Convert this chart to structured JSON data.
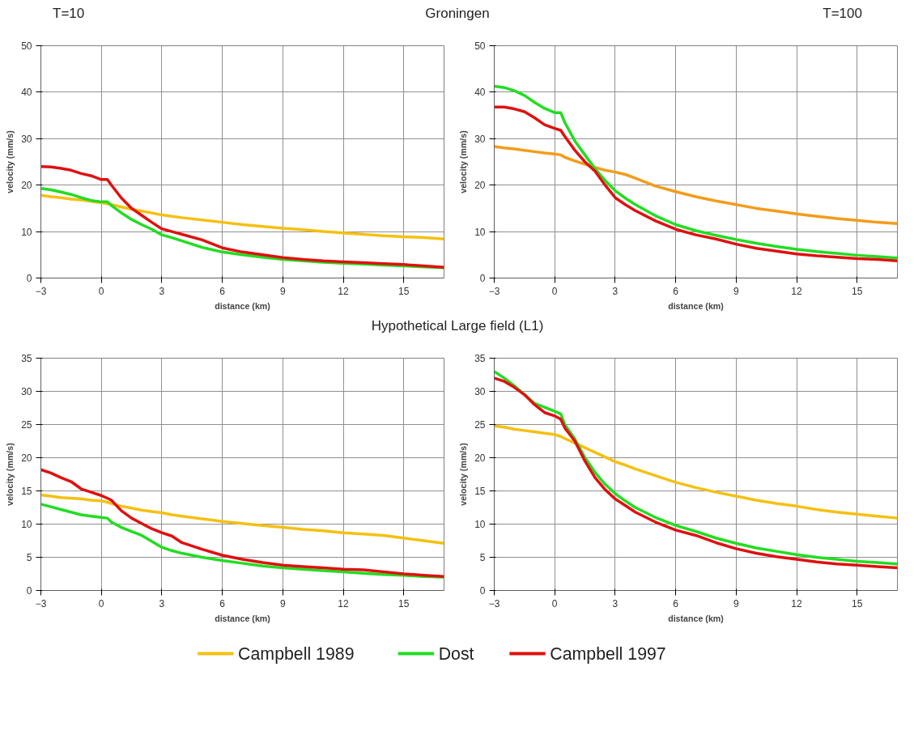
{
  "chart_data": [
    {
      "type": "line",
      "title": "Groningen",
      "subtitle": "T=10",
      "xlabel": "distance (km)",
      "ylabel": "velocity (mm/s)",
      "xlim": [
        -3,
        17
      ],
      "xticks": [
        -3,
        0,
        3,
        6,
        9,
        12,
        15
      ],
      "ylim": [
        0,
        50
      ],
      "yticks": [
        0,
        10,
        20,
        30,
        40,
        50
      ],
      "grid": true,
      "legend": false,
      "x": [
        -3,
        -2.5,
        -2,
        -1.5,
        -1,
        -0.5,
        0,
        0.3,
        0.5,
        1,
        1.5,
        2,
        2.5,
        3,
        3.5,
        4,
        5,
        6,
        7,
        8,
        9,
        10,
        11,
        12,
        13,
        14,
        15,
        16,
        17
      ],
      "series": [
        {
          "color": "#f5c010",
          "values": [
            17.8,
            17.5,
            17.3,
            17.0,
            16.8,
            16.5,
            16.2,
            16.0,
            15.8,
            15.3,
            14.8,
            14.4,
            14.0,
            13.6,
            13.3,
            13.0,
            12.5,
            12.0,
            11.5,
            11.1,
            10.7,
            10.4,
            10.0,
            9.7,
            9.4,
            9.1,
            8.9,
            8.7,
            8.4
          ]
        },
        {
          "color": "#22dd22",
          "values": [
            19.3,
            19.0,
            18.5,
            18.0,
            17.3,
            16.7,
            16.4,
            16.4,
            15.6,
            14.0,
            12.6,
            11.5,
            10.5,
            9.3,
            8.7,
            8.0,
            6.6,
            5.6,
            5.0,
            4.5,
            4.0,
            3.7,
            3.4,
            3.2,
            3.0,
            2.8,
            2.6,
            2.4,
            2.2
          ]
        },
        {
          "color": "#e01010",
          "values": [
            24.0,
            23.9,
            23.6,
            23.2,
            22.5,
            22.0,
            21.2,
            21.2,
            20.0,
            17.2,
            15.0,
            13.5,
            12.0,
            10.6,
            10.0,
            9.4,
            8.2,
            6.5,
            5.6,
            5.0,
            4.4,
            4.0,
            3.7,
            3.5,
            3.3,
            3.1,
            2.9,
            2.6,
            2.3
          ]
        }
      ]
    },
    {
      "type": "line",
      "subtitle": "T=100",
      "xlabel": "distance (km)",
      "ylabel": "velocity (mm/s)",
      "xlim": [
        -3,
        17
      ],
      "xticks": [
        -3,
        0,
        3,
        6,
        9,
        12,
        15
      ],
      "ylim": [
        0,
        50
      ],
      "yticks": [
        0,
        10,
        20,
        30,
        40,
        50
      ],
      "grid": true,
      "legend": false,
      "x": [
        -3,
        -2.5,
        -2,
        -1.5,
        -1,
        -0.5,
        0,
        0.3,
        0.5,
        1,
        1.5,
        2,
        2.5,
        3,
        3.5,
        4,
        5,
        6,
        7,
        8,
        9,
        10,
        11,
        12,
        13,
        14,
        15,
        16,
        17
      ],
      "series": [
        {
          "color": "#f39c1a",
          "values": [
            28.3,
            28.0,
            27.8,
            27.5,
            27.2,
            26.9,
            26.7,
            26.5,
            26.0,
            25.2,
            24.5,
            23.8,
            23.2,
            22.8,
            22.3,
            21.5,
            19.8,
            18.6,
            17.5,
            16.6,
            15.8,
            15.0,
            14.4,
            13.8,
            13.3,
            12.8,
            12.4,
            12.0,
            11.7
          ]
        },
        {
          "color": "#22dd22",
          "values": [
            41.3,
            41.0,
            40.3,
            39.3,
            37.8,
            36.5,
            35.6,
            35.6,
            33.5,
            29.5,
            26.5,
            23.5,
            21.0,
            18.8,
            17.2,
            15.8,
            13.4,
            11.5,
            10.2,
            9.2,
            8.3,
            7.5,
            6.8,
            6.2,
            5.7,
            5.3,
            4.9,
            4.6,
            4.3
          ]
        },
        {
          "color": "#e01010",
          "values": [
            36.8,
            36.8,
            36.4,
            35.8,
            34.5,
            33.0,
            32.2,
            31.8,
            30.5,
            27.5,
            25.0,
            23.0,
            20.0,
            17.3,
            15.8,
            14.5,
            12.3,
            10.5,
            9.3,
            8.4,
            7.3,
            6.4,
            5.8,
            5.2,
            4.8,
            4.5,
            4.2,
            4.0,
            3.7
          ]
        }
      ]
    },
    {
      "type": "line",
      "title": "Hypothetical Large field (L1)",
      "xlabel": "distance (km)",
      "ylabel": "velocity (mm/s)",
      "xlim": [
        -3,
        17
      ],
      "xticks": [
        -3,
        0,
        3,
        6,
        9,
        12,
        15
      ],
      "ylim": [
        0,
        35
      ],
      "yticks": [
        0,
        5,
        10,
        15,
        20,
        25,
        30,
        35
      ],
      "grid": true,
      "legend": false,
      "x": [
        -3,
        -2.5,
        -2,
        -1.5,
        -1,
        -0.5,
        0,
        0.3,
        0.5,
        1,
        1.5,
        2,
        2.5,
        3,
        3.5,
        4,
        5,
        6,
        7,
        8,
        9,
        10,
        11,
        12,
        13,
        14,
        15,
        16,
        17
      ],
      "series": [
        {
          "color": "#f5c010",
          "values": [
            14.4,
            14.2,
            14.0,
            13.9,
            13.8,
            13.6,
            13.5,
            13.3,
            13.1,
            12.7,
            12.4,
            12.1,
            11.9,
            11.7,
            11.4,
            11.2,
            10.8,
            10.4,
            10.1,
            9.8,
            9.5,
            9.2,
            9.0,
            8.7,
            8.5,
            8.3,
            7.9,
            7.5,
            7.1
          ]
        },
        {
          "color": "#22dd22",
          "values": [
            13.0,
            12.6,
            12.2,
            11.8,
            11.4,
            11.2,
            11.0,
            10.9,
            10.3,
            9.5,
            8.9,
            8.3,
            7.4,
            6.5,
            6.0,
            5.6,
            5.0,
            4.5,
            4.1,
            3.7,
            3.4,
            3.2,
            3.0,
            2.8,
            2.6,
            2.4,
            2.3,
            2.1,
            2.0
          ]
        },
        {
          "color": "#e01010",
          "values": [
            18.2,
            17.7,
            17.0,
            16.4,
            15.3,
            14.8,
            14.3,
            13.9,
            13.6,
            12.0,
            10.9,
            10.1,
            9.3,
            8.7,
            8.2,
            7.2,
            6.2,
            5.3,
            4.7,
            4.2,
            3.8,
            3.6,
            3.4,
            3.2,
            3.1,
            2.8,
            2.5,
            2.3,
            2.1
          ]
        }
      ]
    },
    {
      "type": "line",
      "xlabel": "distance (km)",
      "ylabel": "velocity (mm/s)",
      "xlim": [
        -3,
        17
      ],
      "xticks": [
        -3,
        0,
        3,
        6,
        9,
        12,
        15
      ],
      "ylim": [
        0,
        35
      ],
      "yticks": [
        0,
        5,
        10,
        15,
        20,
        25,
        30,
        35
      ],
      "grid": true,
      "legend": "bottom",
      "x": [
        -3,
        -2.5,
        -2,
        -1.5,
        -1,
        -0.5,
        0,
        0.3,
        0.5,
        1,
        1.5,
        2,
        2.5,
        3,
        3.5,
        4,
        5,
        6,
        7,
        8,
        9,
        10,
        11,
        12,
        13,
        14,
        15,
        16,
        17
      ],
      "series": [
        {
          "name": "Campbell 1989",
          "color": "#f5c010",
          "values": [
            24.8,
            24.6,
            24.3,
            24.1,
            23.9,
            23.7,
            23.5,
            23.2,
            22.9,
            22.2,
            21.5,
            20.8,
            20.1,
            19.4,
            18.9,
            18.3,
            17.3,
            16.3,
            15.5,
            14.8,
            14.2,
            13.6,
            13.1,
            12.7,
            12.2,
            11.8,
            11.5,
            11.2,
            10.9
          ]
        },
        {
          "name": "Dost",
          "color": "#22dd22",
          "values": [
            33.0,
            32.0,
            30.8,
            29.5,
            28.2,
            27.6,
            27.0,
            26.6,
            25.0,
            22.8,
            20.0,
            17.8,
            16.0,
            14.6,
            13.5,
            12.5,
            11.0,
            9.8,
            8.9,
            7.9,
            7.1,
            6.4,
            5.9,
            5.4,
            5.0,
            4.7,
            4.4,
            4.2,
            4.0
          ]
        },
        {
          "name": "Campbell 1997",
          "color": "#e01010",
          "values": [
            32.0,
            31.5,
            30.6,
            29.5,
            28.0,
            26.8,
            26.3,
            25.8,
            24.5,
            22.5,
            19.5,
            17.0,
            15.2,
            13.8,
            12.8,
            11.8,
            10.3,
            9.1,
            8.3,
            7.2,
            6.3,
            5.6,
            5.1,
            4.7,
            4.3,
            4.0,
            3.8,
            3.6,
            3.4
          ]
        }
      ]
    }
  ]
}
